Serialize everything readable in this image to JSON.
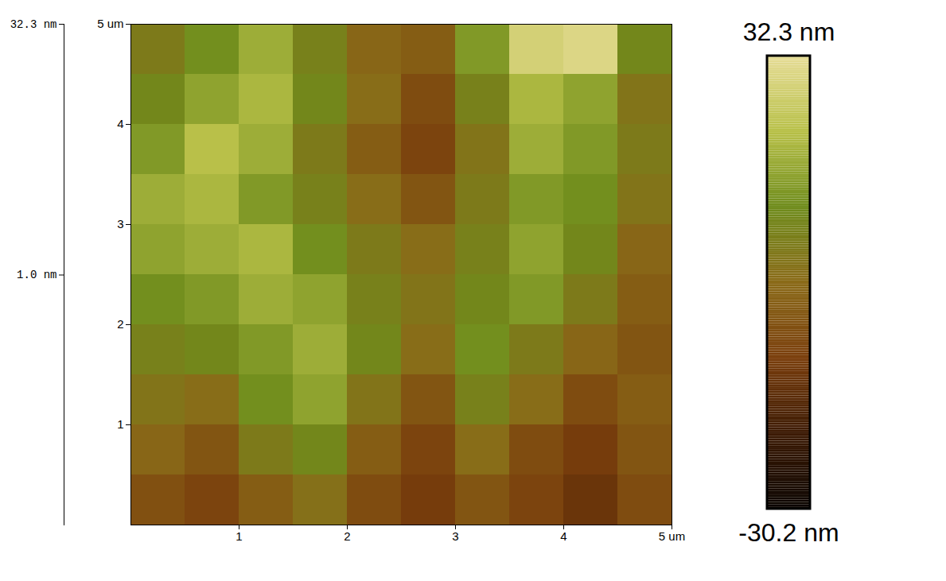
{
  "chart_data": {
    "type": "heatmap",
    "x": [
      0.25,
      0.75,
      1.25,
      1.75,
      2.25,
      2.75,
      3.25,
      3.75,
      4.25,
      4.75
    ],
    "y": [
      0.25,
      0.75,
      1.25,
      1.75,
      2.25,
      2.75,
      3.25,
      3.75,
      4.25,
      4.75
    ],
    "values": [
      [
        -5,
        -8,
        -2,
        3,
        -6,
        -10,
        -4,
        -8,
        -12,
        -6
      ],
      [
        0,
        -4,
        6,
        10,
        -2,
        -8,
        2,
        -6,
        -10,
        -4
      ],
      [
        4,
        2,
        12,
        16,
        4,
        -4,
        8,
        2,
        -6,
        -2
      ],
      [
        8,
        10,
        14,
        18,
        10,
        2,
        12,
        6,
        0,
        -4
      ],
      [
        12,
        14,
        18,
        16,
        8,
        4,
        10,
        14,
        6,
        -2
      ],
      [
        16,
        18,
        20,
        12,
        6,
        2,
        8,
        16,
        10,
        0
      ],
      [
        18,
        20,
        14,
        8,
        2,
        -4,
        6,
        14,
        12,
        4
      ],
      [
        14,
        22,
        18,
        6,
        -2,
        -8,
        4,
        18,
        14,
        6
      ],
      [
        10,
        16,
        20,
        10,
        2,
        -6,
        8,
        20,
        16,
        4
      ],
      [
        6,
        12,
        18,
        8,
        0,
        -2,
        14,
        28,
        30,
        10
      ]
    ],
    "xlim": [
      0,
      5
    ],
    "ylim": [
      0,
      5
    ],
    "xticks": [
      1,
      2,
      3,
      4,
      {
        "value": 5,
        "label": "5 um"
      }
    ],
    "yticks": [
      1,
      2,
      3,
      4,
      {
        "value": 5,
        "label": "5 um"
      }
    ],
    "zticks": [
      {
        "value": 32.3,
        "label": "32.3 nm"
      },
      {
        "value": 1.0,
        "label": "1.0 nm"
      }
    ],
    "color_range": [
      -30.2,
      32.3
    ],
    "color_ticks": [
      {
        "value": 32.3,
        "label": "32.3 nm"
      },
      {
        "value": -30.2,
        "label": "-30.2 nm"
      }
    ]
  }
}
